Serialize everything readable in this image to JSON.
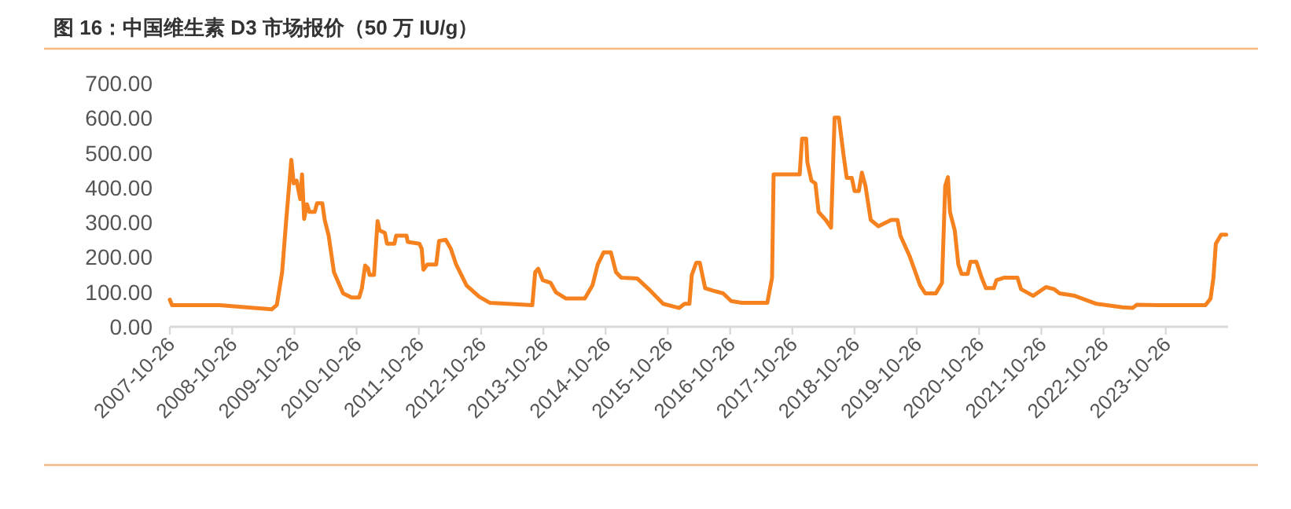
{
  "chart_data": {
    "type": "line",
    "title": "图 16：中国维生素 D3 市场报价（50 万 IU/g）",
    "x": [
      "2007-10-26",
      "2007-11-08",
      "2008-08-15",
      "2009-02-15",
      "2009-06-15",
      "2009-07-15",
      "2009-08-15",
      "2009-09-08",
      "2009-10-08",
      "2009-10-22",
      "2009-11-08",
      "2009-11-29",
      "2009-12-10",
      "2009-12-22",
      "2010-01-08",
      "2010-01-22",
      "2010-02-22",
      "2010-03-08",
      "2010-04-08",
      "2010-04-22",
      "2010-05-15",
      "2010-06-15",
      "2010-08-08",
      "2010-09-26",
      "2010-11-10",
      "2010-11-26",
      "2010-12-15",
      "2011-01-01",
      "2011-01-10",
      "2011-02-05",
      "2011-02-26",
      "2011-03-10",
      "2011-04-10",
      "2011-04-22",
      "2011-06-05",
      "2011-06-15",
      "2011-08-15",
      "2011-08-22",
      "2011-10-29",
      "2011-11-12",
      "2011-11-22",
      "2011-12-15",
      "2012-02-05",
      "2012-02-22",
      "2012-04-01",
      "2012-05-01",
      "2012-06-01",
      "2012-08-01",
      "2012-10-15",
      "2012-12-15",
      "2013-04-01",
      "2013-08-22",
      "2013-09-08",
      "2013-09-26",
      "2013-10-22",
      "2013-12-08",
      "2014-01-08",
      "2014-03-08",
      "2014-06-26",
      "2014-08-10",
      "2014-09-10",
      "2014-10-15",
      "2014-11-26",
      "2014-12-26",
      "2015-01-26",
      "2015-04-29",
      "2015-07-15",
      "2015-09-29",
      "2016-01-01",
      "2016-02-01",
      "2016-03-01",
      "2016-03-15",
      "2016-04-10",
      "2016-05-01",
      "2016-06-01",
      "2016-07-15",
      "2016-09-15",
      "2016-11-01",
      "2017-01-01",
      "2017-06-01",
      "2017-06-29",
      "2017-07-08",
      "2017-12-08",
      "2017-12-22",
      "2018-01-15",
      "2018-01-22",
      "2018-02-15",
      "2018-03-10",
      "2018-03-29",
      "2018-05-10",
      "2018-06-10",
      "2018-07-01",
      "2018-07-26",
      "2018-08-22",
      "2018-09-10",
      "2018-10-10",
      "2018-10-26",
      "2018-11-20",
      "2018-12-08",
      "2018-12-29",
      "2019-01-29",
      "2019-03-15",
      "2019-05-29",
      "2019-07-05",
      "2019-07-22",
      "2019-09-15",
      "2019-11-15",
      "2019-12-15",
      "2020-02-15",
      "2020-03-22",
      "2020-04-10",
      "2020-04-26",
      "2020-05-08",
      "2020-06-05",
      "2020-06-26",
      "2020-07-15",
      "2020-08-20",
      "2020-09-05",
      "2020-10-10",
      "2020-11-10",
      "2020-12-05",
      "2021-01-20",
      "2021-02-05",
      "2021-03-20",
      "2021-06-08",
      "2021-06-29",
      "2021-09-08",
      "2021-11-22",
      "2022-01-10",
      "2022-02-10",
      "2022-05-10",
      "2022-09-15",
      "2023-02-15",
      "2023-04-15",
      "2023-05-08",
      "2023-09-15",
      "2024-06-15",
      "2024-07-15",
      "2024-08-01",
      "2024-08-15",
      "2024-09-15",
      "2024-10-15"
    ],
    "series": [
      {
        "color": "#f5821f",
        "values": [
          78,
          62,
          62,
          55,
          50,
          63,
          157,
          307,
          480,
          412,
          420,
          367,
          438,
          310,
          352,
          330,
          330,
          355,
          355,
          307,
          262,
          157,
          96,
          84,
          84,
          111,
          176,
          168,
          149,
          149,
          304,
          277,
          270,
          239,
          239,
          262,
          262,
          244,
          239,
          224,
          164,
          179,
          179,
          247,
          250,
          224,
          179,
          119,
          86,
          69,
          66,
          62,
          157,
          167,
          134,
          126,
          99,
          81,
          81,
          119,
          179,
          214,
          214,
          157,
          141,
          139,
          104,
          66,
          54,
          66,
          66,
          149,
          184,
          184,
          111,
          104,
          96,
          74,
          69,
          69,
          141,
          438,
          438,
          541,
          541,
          473,
          420,
          412,
          330,
          307,
          285,
          601,
          601,
          495,
          428,
          428,
          390,
          390,
          443,
          405,
          307,
          289,
          307,
          307,
          262,
          202,
          119,
          96,
          96,
          126,
          405,
          430,
          330,
          277,
          179,
          152,
          152,
          187,
          187,
          141,
          111,
          111,
          134,
          141,
          141,
          108,
          89,
          114,
          108,
          96,
          89,
          66,
          56,
          54,
          63,
          62,
          62,
          81,
          141,
          239,
          265,
          265
        ]
      }
    ],
    "xlim": [
      "2007-10-26",
      "2024-10-26"
    ],
    "xticks": [
      {
        "value": "2007-10-26",
        "label": "2007-10-26"
      },
      {
        "value": "2008-10-26",
        "label": "2008-10-26"
      },
      {
        "value": "2009-10-26",
        "label": "2009-10-26"
      },
      {
        "value": "2010-10-26",
        "label": "2010-10-26"
      },
      {
        "value": "2011-10-26",
        "label": "2011-10-26"
      },
      {
        "value": "2012-10-26",
        "label": "2012-10-26"
      },
      {
        "value": "2013-10-26",
        "label": "2013-10-26"
      },
      {
        "value": "2014-10-26",
        "label": "2014-10-26"
      },
      {
        "value": "2015-10-26",
        "label": "2015-10-26"
      },
      {
        "value": "2016-10-26",
        "label": "2016-10-26"
      },
      {
        "value": "2017-10-26",
        "label": "2017-10-26"
      },
      {
        "value": "2018-10-26",
        "label": "2018-10-26"
      },
      {
        "value": "2019-10-26",
        "label": "2019-10-26"
      },
      {
        "value": "2020-10-26",
        "label": "2020-10-26"
      },
      {
        "value": "2021-10-26",
        "label": "2021-10-26"
      },
      {
        "value": "2022-10-26",
        "label": "2022-10-26"
      },
      {
        "value": "2023-10-26",
        "label": "2023-10-26"
      }
    ],
    "ylim": [
      0,
      700
    ],
    "yticks": [
      {
        "value": 0,
        "label": "0.00"
      },
      {
        "value": 100,
        "label": "100.00"
      },
      {
        "value": 200,
        "label": "200.00"
      },
      {
        "value": 300,
        "label": "300.00"
      },
      {
        "value": 400,
        "label": "400.00"
      },
      {
        "value": 500,
        "label": "500.00"
      },
      {
        "value": 600,
        "label": "600.00"
      },
      {
        "value": 700,
        "label": "700.00"
      }
    ],
    "grid": false
  }
}
